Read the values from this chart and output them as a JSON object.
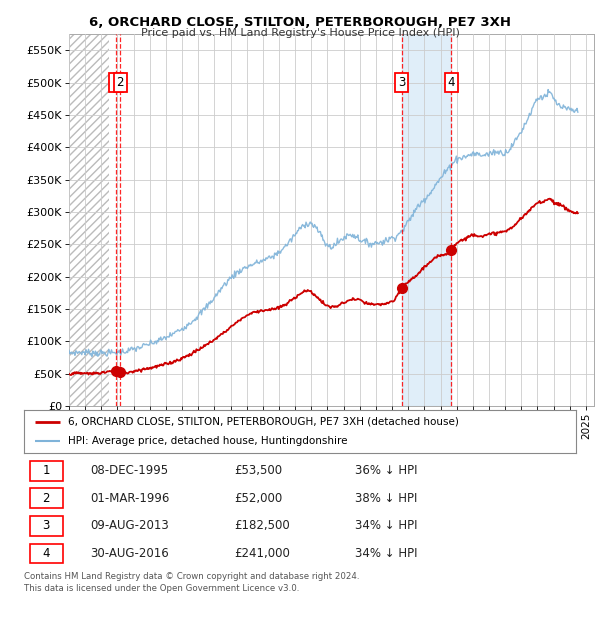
{
  "title": "6, ORCHARD CLOSE, STILTON, PETERBOROUGH, PE7 3XH",
  "subtitle": "Price paid vs. HM Land Registry's House Price Index (HPI)",
  "ylim": [
    0,
    575000
  ],
  "yticks": [
    0,
    50000,
    100000,
    150000,
    200000,
    250000,
    300000,
    350000,
    400000,
    450000,
    500000,
    550000
  ],
  "xlim_start": 1993.0,
  "xlim_end": 2025.5,
  "hatch_end_year": 1995.5,
  "grid_color": "#cccccc",
  "bg_color": "#ffffff",
  "sale_color": "#cc0000",
  "hpi_color": "#7fb3d9",
  "legend_sale_label": "6, ORCHARD CLOSE, STILTON, PETERBOROUGH, PE7 3XH (detached house)",
  "legend_hpi_label": "HPI: Average price, detached house, Huntingdonshire",
  "transactions": [
    {
      "num": 1,
      "date": 1995.92,
      "price": 53500
    },
    {
      "num": 2,
      "date": 1996.17,
      "price": 52000
    },
    {
      "num": 3,
      "date": 2013.6,
      "price": 182500
    },
    {
      "num": 4,
      "date": 2016.67,
      "price": 241000
    }
  ],
  "footer1": "Contains HM Land Registry data © Crown copyright and database right 2024.",
  "footer2": "This data is licensed under the Open Government Licence v3.0.",
  "table_rows": [
    [
      "1",
      "08-DEC-1995",
      "£53,500",
      "36% ↓ HPI"
    ],
    [
      "2",
      "01-MAR-1996",
      "£52,000",
      "38% ↓ HPI"
    ],
    [
      "3",
      "09-AUG-2013",
      "£182,500",
      "34% ↓ HPI"
    ],
    [
      "4",
      "30-AUG-2016",
      "£241,000",
      "34% ↓ HPI"
    ]
  ],
  "hpi_anchors": [
    [
      1993.0,
      82000
    ],
    [
      1994.0,
      83000
    ],
    [
      1995.0,
      82000
    ],
    [
      1996.0,
      83000
    ],
    [
      1997.0,
      88000
    ],
    [
      1998.0,
      96000
    ],
    [
      1999.0,
      106000
    ],
    [
      2000.0,
      120000
    ],
    [
      2001.0,
      140000
    ],
    [
      2002.0,
      168000
    ],
    [
      2003.0,
      198000
    ],
    [
      2004.0,
      215000
    ],
    [
      2005.0,
      225000
    ],
    [
      2006.0,
      238000
    ],
    [
      2007.0,
      265000
    ],
    [
      2007.8,
      283000
    ],
    [
      2008.5,
      268000
    ],
    [
      2009.0,
      248000
    ],
    [
      2009.5,
      250000
    ],
    [
      2010.0,
      260000
    ],
    [
      2010.5,
      265000
    ],
    [
      2011.0,
      258000
    ],
    [
      2011.5,
      252000
    ],
    [
      2012.0,
      252000
    ],
    [
      2012.5,
      255000
    ],
    [
      2013.0,
      260000
    ],
    [
      2013.5,
      268000
    ],
    [
      2014.0,
      285000
    ],
    [
      2014.5,
      305000
    ],
    [
      2015.0,
      320000
    ],
    [
      2015.5,
      335000
    ],
    [
      2016.0,
      352000
    ],
    [
      2016.5,
      368000
    ],
    [
      2017.0,
      382000
    ],
    [
      2017.5,
      385000
    ],
    [
      2018.0,
      390000
    ],
    [
      2018.5,
      388000
    ],
    [
      2019.0,
      390000
    ],
    [
      2019.5,
      393000
    ],
    [
      2020.0,
      392000
    ],
    [
      2020.5,
      405000
    ],
    [
      2021.0,
      425000
    ],
    [
      2021.5,
      450000
    ],
    [
      2022.0,
      475000
    ],
    [
      2022.5,
      480000
    ],
    [
      2022.8,
      483000
    ],
    [
      2023.0,
      475000
    ],
    [
      2023.5,
      462000
    ],
    [
      2024.0,
      458000
    ],
    [
      2024.5,
      455000
    ]
  ],
  "sale_anchors": [
    [
      1993.0,
      50000
    ],
    [
      1994.0,
      50500
    ],
    [
      1995.0,
      51500
    ],
    [
      1995.92,
      53500
    ],
    [
      1996.17,
      52000
    ],
    [
      1997.0,
      54000
    ],
    [
      1998.0,
      59000
    ],
    [
      1999.0,
      65000
    ],
    [
      2000.0,
      74000
    ],
    [
      2001.0,
      87000
    ],
    [
      2002.0,
      103000
    ],
    [
      2003.0,
      122000
    ],
    [
      2004.0,
      140000
    ],
    [
      2005.0,
      148000
    ],
    [
      2006.0,
      152000
    ],
    [
      2007.0,
      168000
    ],
    [
      2007.8,
      178000
    ],
    [
      2008.3,
      170000
    ],
    [
      2008.8,
      158000
    ],
    [
      2009.3,
      153000
    ],
    [
      2009.8,
      157000
    ],
    [
      2010.3,
      163000
    ],
    [
      2010.8,
      165000
    ],
    [
      2011.3,
      160000
    ],
    [
      2011.8,
      157000
    ],
    [
      2012.3,
      157000
    ],
    [
      2012.8,
      160000
    ],
    [
      2013.2,
      165000
    ],
    [
      2013.6,
      182500
    ],
    [
      2014.0,
      192000
    ],
    [
      2014.5,
      202000
    ],
    [
      2015.0,
      215000
    ],
    [
      2015.5,
      225000
    ],
    [
      2016.0,
      233000
    ],
    [
      2016.67,
      241000
    ],
    [
      2017.0,
      252000
    ],
    [
      2017.5,
      258000
    ],
    [
      2018.0,
      265000
    ],
    [
      2018.5,
      263000
    ],
    [
      2019.0,
      265000
    ],
    [
      2019.5,
      268000
    ],
    [
      2020.0,
      270000
    ],
    [
      2020.5,
      278000
    ],
    [
      2021.0,
      290000
    ],
    [
      2021.5,
      302000
    ],
    [
      2022.0,
      314000
    ],
    [
      2022.5,
      318000
    ],
    [
      2022.8,
      320000
    ],
    [
      2023.0,
      316000
    ],
    [
      2023.3,
      312000
    ],
    [
      2023.6,
      308000
    ],
    [
      2024.0,
      302000
    ],
    [
      2024.5,
      298000
    ]
  ]
}
